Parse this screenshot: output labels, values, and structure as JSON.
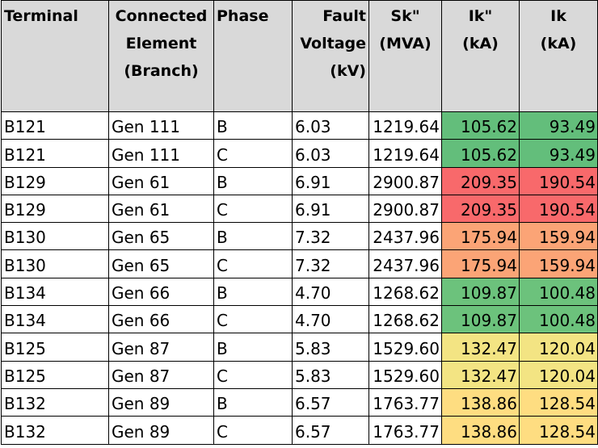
{
  "headers": [
    {
      "lines": [
        "Terminal"
      ]
    },
    {
      "lines": [
        "Connected",
        "Element",
        "(Branch)"
      ]
    },
    {
      "lines": [
        "Phase"
      ]
    },
    {
      "lines": [
        "Fault",
        "Voltage",
        "(kV)"
      ]
    },
    {
      "lines": [
        "Sk\"",
        "(MVA)"
      ]
    },
    {
      "lines": [
        "Ik\"",
        "(kA)"
      ]
    },
    {
      "lines": [
        "Ik",
        "(kA)"
      ]
    }
  ],
  "rows": [
    {
      "terminal": "B121",
      "element": "Gen 111",
      "phase": "B",
      "voltage": "6.03",
      "sk": "1219.64",
      "ik2": "105.62",
      "ik": "93.49",
      "ik2_color": "#63be7b",
      "ik_color": "#63be7b"
    },
    {
      "terminal": "B121",
      "element": "Gen 111",
      "phase": "C",
      "voltage": "6.03",
      "sk": "1219.64",
      "ik2": "105.62",
      "ik": "93.49",
      "ik2_color": "#63be7b",
      "ik_color": "#63be7b"
    },
    {
      "terminal": "B129",
      "element": "Gen 61",
      "phase": "B",
      "voltage": "6.91",
      "sk": "2900.87",
      "ik2": "209.35",
      "ik": "190.54",
      "ik2_color": "#f8696b",
      "ik_color": "#f8696b"
    },
    {
      "terminal": "B129",
      "element": "Gen 61",
      "phase": "C",
      "voltage": "6.91",
      "sk": "2900.87",
      "ik2": "209.35",
      "ik": "190.54",
      "ik2_color": "#f8696b",
      "ik_color": "#f8696b"
    },
    {
      "terminal": "B130",
      "element": "Gen 65",
      "phase": "B",
      "voltage": "7.32",
      "sk": "2437.96",
      "ik2": "175.94",
      "ik": "159.94",
      "ik2_color": "#fba476",
      "ik_color": "#fba476"
    },
    {
      "terminal": "B130",
      "element": "Gen 65",
      "phase": "C",
      "voltage": "7.32",
      "sk": "2437.96",
      "ik2": "175.94",
      "ik": "159.94",
      "ik2_color": "#fba476",
      "ik_color": "#fba476"
    },
    {
      "terminal": "B134",
      "element": "Gen 66",
      "phase": "B",
      "voltage": "4.70",
      "sk": "1268.62",
      "ik2": "109.87",
      "ik": "100.48",
      "ik2_color": "#6cc27c",
      "ik_color": "#6cc27c"
    },
    {
      "terminal": "B134",
      "element": "Gen 66",
      "phase": "C",
      "voltage": "4.70",
      "sk": "1268.62",
      "ik2": "109.87",
      "ik": "100.48",
      "ik2_color": "#6cc27c",
      "ik_color": "#6cc27c"
    },
    {
      "terminal": "B125",
      "element": "Gen 87",
      "phase": "B",
      "voltage": "5.83",
      "sk": "1529.60",
      "ik2": "132.47",
      "ik": "120.04",
      "ik2_color": "#f3e483",
      "ik_color": "#f3e483"
    },
    {
      "terminal": "B125",
      "element": "Gen 87",
      "phase": "C",
      "voltage": "5.83",
      "sk": "1529.60",
      "ik2": "132.47",
      "ik": "120.04",
      "ik2_color": "#f3e483",
      "ik_color": "#f3e483"
    },
    {
      "terminal": "B132",
      "element": "Gen 89",
      "phase": "B",
      "voltage": "6.57",
      "sk": "1763.77",
      "ik2": "138.86",
      "ik": "128.54",
      "ik2_color": "#fedd81",
      "ik_color": "#fedd81"
    },
    {
      "terminal": "B132",
      "element": "Gen 89",
      "phase": "C",
      "voltage": "6.57",
      "sk": "1763.77",
      "ik2": "138.86",
      "ik": "128.54",
      "ik2_color": "#fedd81",
      "ik_color": "#fedd81"
    }
  ]
}
